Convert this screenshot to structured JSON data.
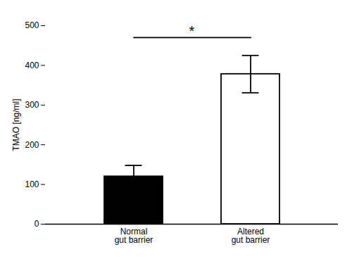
{
  "chart_data": {
    "type": "bar",
    "categories": [
      "Normal\ngut barrier",
      "Altered\ngut barrier"
    ],
    "values": [
      120,
      378
    ],
    "errors": [
      28,
      47
    ],
    "colors": [
      "#000000",
      "#ffffff"
    ],
    "ylabel": "TMAO [ng/ml]",
    "ylim": [
      0,
      500
    ],
    "yticks": [
      0,
      100,
      200,
      300,
      400,
      500
    ],
    "grid": false,
    "annotations": [
      {
        "text": "*",
        "y": 470,
        "between": [
          "Normal\ngut barrier",
          "Altered\ngut barrier"
        ]
      }
    ]
  }
}
